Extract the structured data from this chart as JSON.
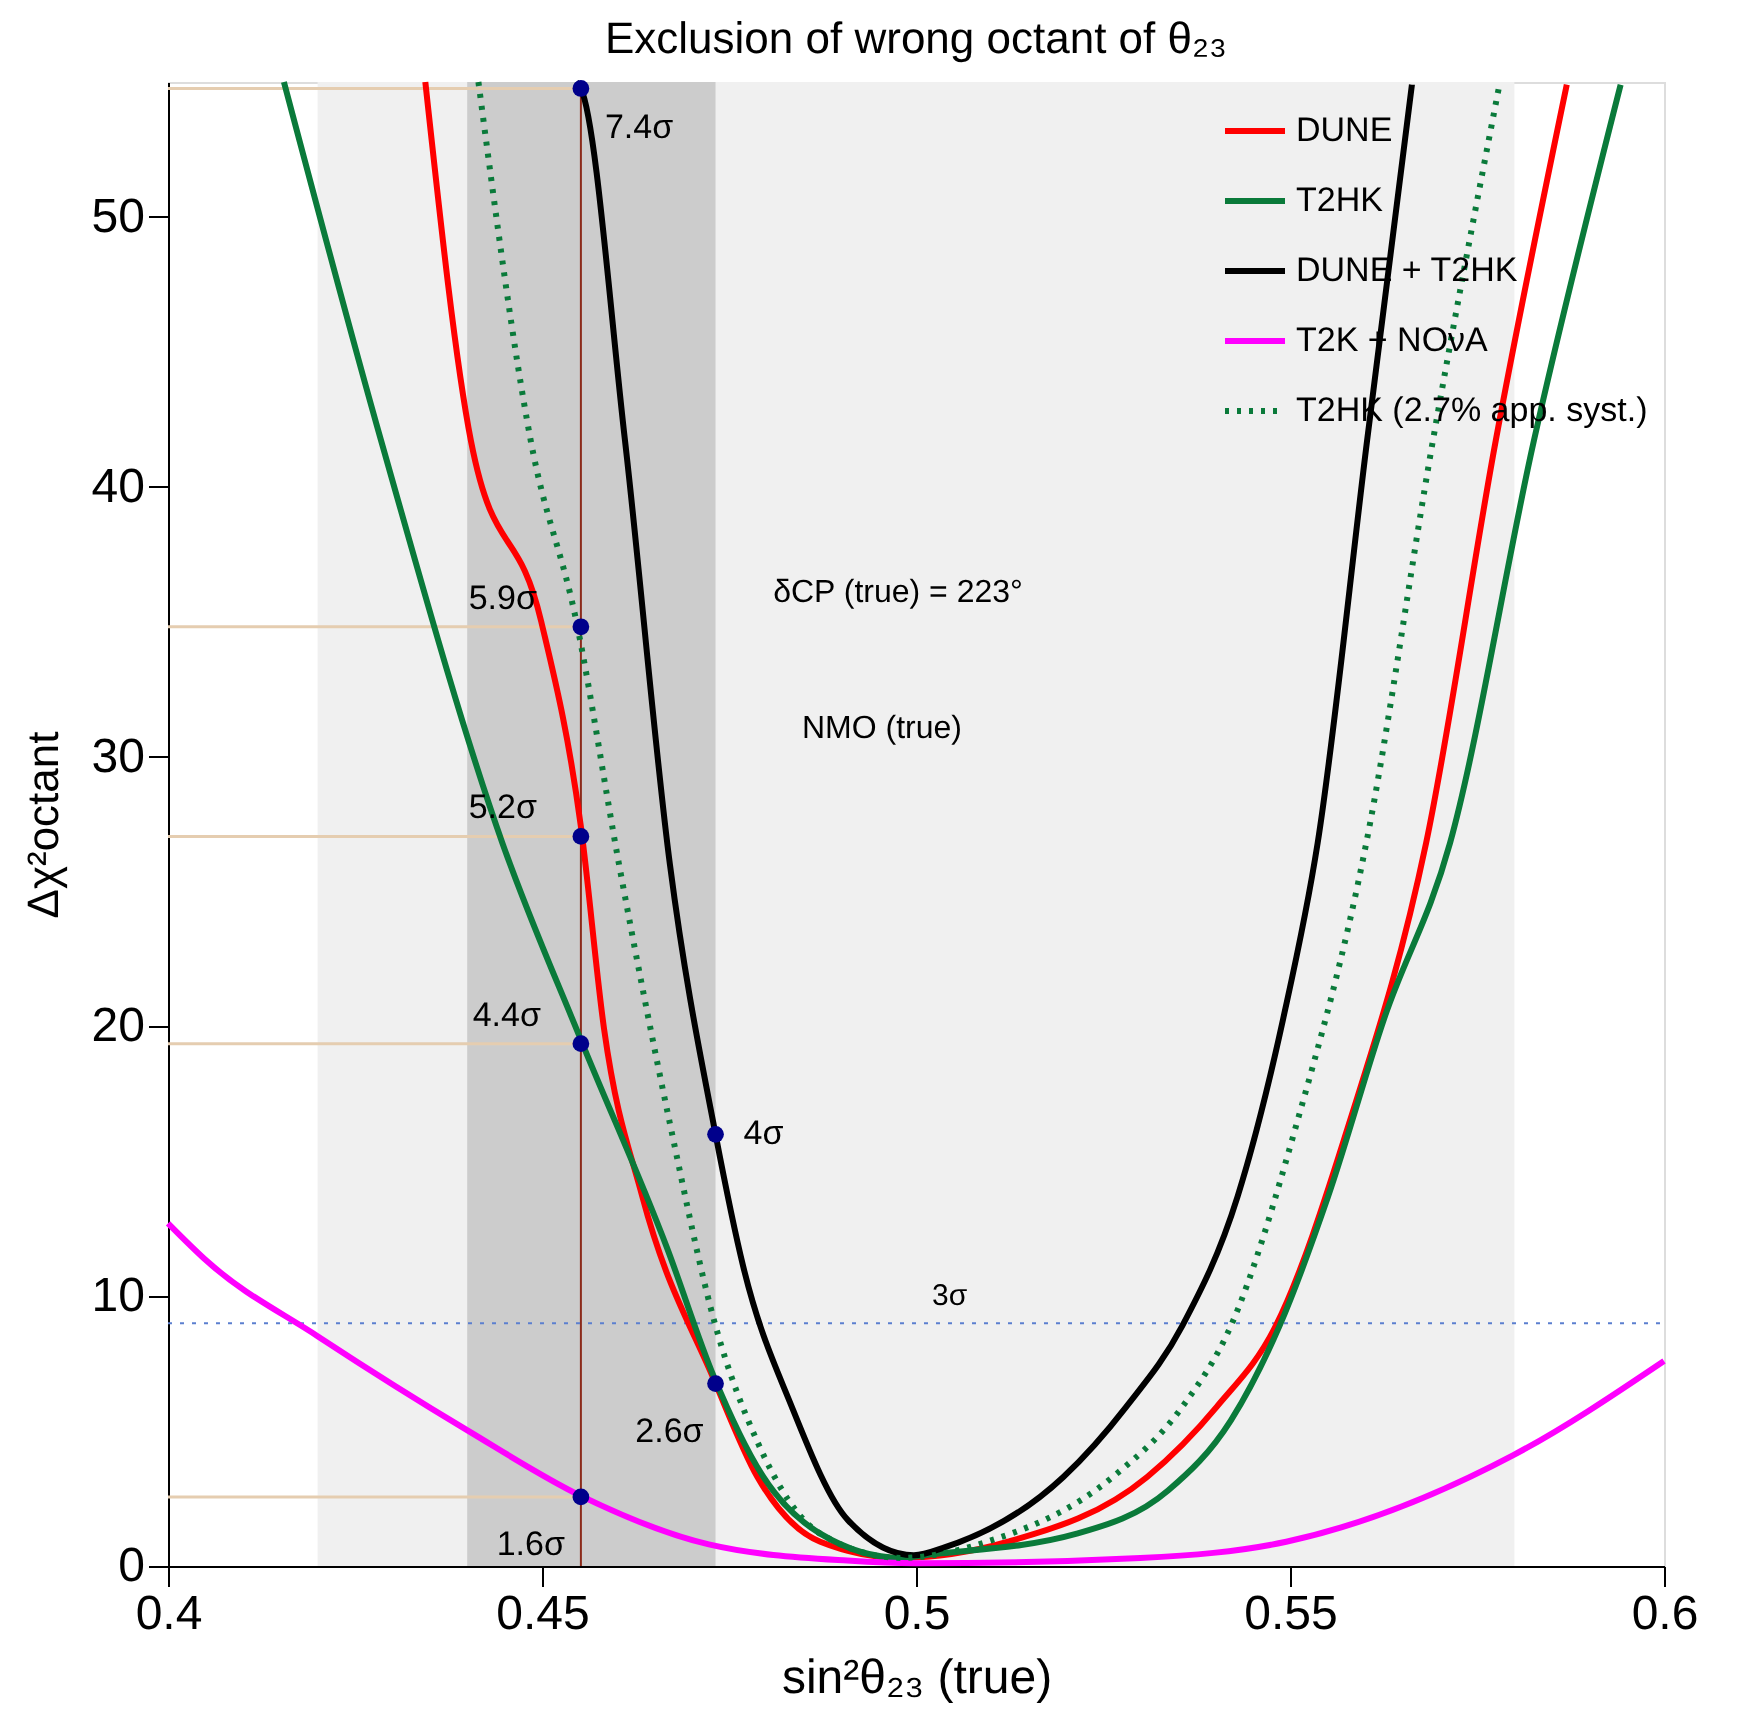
{
  "chart_data": {
    "type": "line",
    "title": "Exclusion of wrong octant of θ₂₃",
    "xlabel": "sin²θ₂₃ (true)",
    "ylabel": "Δχ²octant",
    "xlim": [
      0.4,
      0.6
    ],
    "xticks": [
      0.4,
      0.45,
      0.5,
      0.55,
      0.6
    ],
    "ylim": [
      0,
      55
    ],
    "yticks": [
      0,
      10,
      20,
      30,
      40,
      50
    ],
    "grid": false,
    "legend": "top right",
    "marker": "none",
    "bands": [
      {
        "axis": "x",
        "from": 0.42,
        "to": 0.58,
        "color": "#f0f0f0"
      },
      {
        "axis": "x",
        "from": 0.44,
        "to": 0.4732,
        "color": "#cccccc"
      }
    ],
    "ref_lines": [
      {
        "axis": "x",
        "value": 0.4552,
        "color": "#8b2a1a",
        "line_style": "solid"
      },
      {
        "axis": "y",
        "value": 9,
        "label": "3σ",
        "color": "#5b7fcf",
        "line_style": "dotted"
      }
    ],
    "annotations": [
      "δCP (true) = 223°",
      "NMO (true)",
      "7.4σ",
      "5.9σ",
      "5.2σ",
      "4.4σ",
      "4σ",
      "2.6σ",
      "1.6σ"
    ],
    "series": [
      {
        "name": "DUNE",
        "color": "#ff0000",
        "line_style": "solid",
        "x": [
          0.4344,
          0.4405,
          0.4499,
          0.4552,
          0.4583,
          0.4634,
          0.473,
          0.4788,
          0.4872,
          0.498,
          0.5123,
          0.5309,
          0.5402,
          0.5481,
          0.5579,
          0.5682,
          0.5775,
          0.587
        ],
        "values": [
          55,
          41.7,
          35.0,
          27.4,
          19.9,
          13.7,
          6.9,
          3.3,
          0.9,
          0.3,
          0.9,
          3.3,
          5.9,
          8.9,
          16.4,
          26.8,
          41.7,
          54.9
        ]
      },
      {
        "name": "T2HK",
        "color": "#0a7a3a",
        "line_style": "solid",
        "x": [
          0.4155,
          0.4285,
          0.4447,
          0.4552,
          0.4667,
          0.473,
          0.4796,
          0.4872,
          0.498,
          0.5011,
          0.5215,
          0.5337,
          0.5421,
          0.5486,
          0.5551,
          0.5626,
          0.5714,
          0.5826,
          0.5942
        ],
        "values": [
          55,
          41.7,
          26.8,
          19.5,
          11.8,
          7.0,
          3.3,
          1.2,
          0.3,
          0.4,
          1.2,
          2.8,
          5.4,
          8.9,
          13.7,
          20.3,
          26.8,
          41.7,
          54.9
        ]
      },
      {
        "name": "DUNE + T2HK",
        "color": "#000000",
        "line_style": "solid",
        "x": [
          0.4546,
          0.4552,
          0.4611,
          0.4671,
          0.4732,
          0.4769,
          0.4834,
          0.4909,
          0.4997,
          0.5039,
          0.5197,
          0.5281,
          0.5356,
          0.543,
          0.5491,
          0.5537,
          0.5603,
          0.5663
        ],
        "values": [
          55,
          54.76,
          41.7,
          26.0,
          16,
          11.1,
          5.9,
          1.7,
          0.4,
          0.7,
          3.3,
          5.9,
          8.9,
          13.7,
          20.3,
          26.8,
          41.7,
          54.9
        ]
      },
      {
        "name": "T2K + NOνA",
        "color": "#ff00ff",
        "line_style": "solid",
        "x": [
          0.4,
          0.4052,
          0.4201,
          0.4402,
          0.4552,
          0.4723,
          0.4908,
          0.5,
          0.53,
          0.5495,
          0.5798,
          0.6
        ],
        "values": [
          12.7,
          11.3,
          8.5,
          5.0,
          2.6,
          0.8,
          0.2,
          0.1,
          0.3,
          0.9,
          4.1,
          7.6
        ]
      },
      {
        "name": "T2HK (2.7% app. syst.)",
        "color": "#0a7a3a",
        "line_style": "dotted",
        "x": [
          0.4415,
          0.4485,
          0.4546,
          0.4603,
          0.4671,
          0.4732,
          0.4788,
          0.4872,
          0.498,
          0.5095,
          0.5263,
          0.5356,
          0.5421,
          0.5509,
          0.5602,
          0.5691,
          0.578
        ],
        "values": [
          55,
          41.7,
          35.0,
          26.0,
          16.4,
          8.9,
          4.6,
          1.2,
          0.3,
          0.9,
          3.3,
          5.9,
          8.9,
          16.4,
          26.8,
          41.7,
          54.9
        ]
      },
      {
        "color": "#e5cdb0",
        "line_style": "solid",
        "x": [
          0.4,
          0.4552
        ],
        "values": [
          54.76,
          54.76
        ]
      },
      {
        "color": "#e5cdb0",
        "line_style": "solid",
        "x": [
          0.4,
          0.4552
        ],
        "values": [
          34.81,
          34.81
        ]
      },
      {
        "color": "#e5cdb0",
        "line_style": "solid",
        "x": [
          0.4,
          0.4552
        ],
        "values": [
          27.04,
          27.04
        ]
      },
      {
        "color": "#e5cdb0",
        "line_style": "solid",
        "x": [
          0.4,
          0.4552
        ],
        "values": [
          19.36,
          19.36
        ]
      },
      {
        "color": "#e5cdb0",
        "line_style": "solid",
        "x": [
          0.4,
          0.4552
        ],
        "values": [
          2.56,
          2.56
        ]
      },
      {
        "type": "scatter",
        "color": "#00008b",
        "marker": "circle",
        "x": [
          0.4552,
          0.4552,
          0.4552,
          0.4552,
          0.4732,
          0.4732,
          0.4552
        ],
        "values": [
          54.76,
          34.81,
          27.04,
          19.36,
          16,
          6.76,
          2.56
        ]
      }
    ]
  }
}
